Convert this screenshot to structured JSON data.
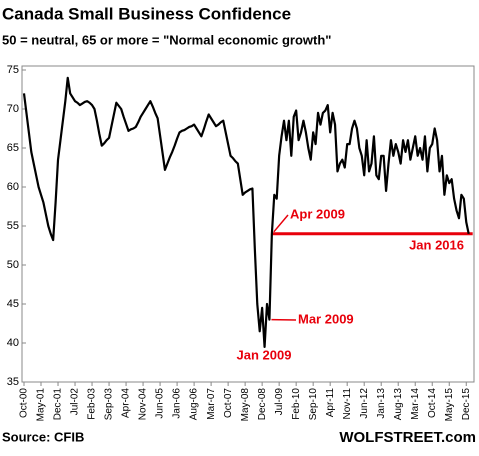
{
  "chart_data": {
    "type": "line",
    "title": "Canada Small Business Confidence",
    "subtitle": "50 = neutral, 65 or more = \"Normal economic growth\"",
    "source": "Source: CFIB",
    "credit": "WOLFSTREET.com",
    "color": "#000000",
    "categories": [
      "Oct-00",
      null,
      null,
      null,
      null,
      null,
      null,
      "May-01",
      null,
      null,
      null,
      null,
      null,
      null,
      "Dec-01",
      null,
      null,
      null,
      null,
      null,
      null,
      "Jul-02",
      null,
      null,
      null,
      null,
      null,
      null,
      "Feb-03",
      null,
      null,
      null,
      null,
      null,
      null,
      "Sep-03",
      null,
      null,
      null,
      null,
      null,
      null,
      "Apr-04",
      null,
      null,
      null,
      null,
      null,
      null,
      "Nov-04",
      null,
      null,
      null,
      null,
      null,
      null,
      "Jun-05",
      null,
      null,
      null,
      null,
      null,
      null,
      "Jan-06",
      null,
      null,
      null,
      null,
      null,
      null,
      "Aug-06",
      null,
      null,
      null,
      null,
      null,
      null,
      "Mar-07",
      null,
      null,
      null,
      null,
      null,
      null,
      "Oct-07",
      null,
      null,
      null,
      null,
      null,
      null,
      "May-08",
      null,
      null,
      null,
      null,
      null,
      null,
      "Dec-08",
      null,
      null,
      null,
      null,
      null,
      null,
      "Jul-09",
      null,
      null,
      null,
      null,
      null,
      null,
      "Feb-10",
      null,
      null,
      null,
      null,
      null,
      null,
      "Sep-10",
      null,
      null,
      null,
      null,
      null,
      null,
      "Apr-11",
      null,
      null,
      null,
      null,
      null,
      null,
      "Nov-11",
      null,
      null,
      null,
      null,
      null,
      null,
      "Jun-12",
      null,
      null,
      null,
      null,
      null,
      null,
      "Jan-13",
      null,
      null,
      null,
      null,
      null,
      null,
      "Aug-13",
      null,
      null,
      null,
      null,
      null,
      null,
      "Mar-14",
      null,
      null,
      null,
      null,
      null,
      null,
      "Oct-14",
      null,
      null,
      null,
      null,
      null,
      null,
      "May-15",
      null,
      null,
      null,
      null,
      null,
      null,
      "Dec-15",
      null
    ],
    "values": [
      72,
      69.5,
      67,
      64.5,
      63,
      61.5,
      60,
      59,
      58,
      56.5,
      55,
      54,
      53.2,
      58,
      63.5,
      66,
      68.5,
      71,
      74,
      72,
      71.5,
      71,
      70.8,
      70.5,
      70.7,
      70.9,
      71,
      70.8,
      70.5,
      70,
      68.5,
      66.8,
      65.3,
      65.6,
      66,
      66.3,
      67.8,
      69.3,
      70.8,
      70.4,
      70,
      69,
      68.1,
      67.2,
      67.4,
      67.5,
      67.7,
      68.3,
      69,
      69.5,
      70,
      70.5,
      71,
      70.3,
      69.5,
      68.8,
      66.6,
      64.4,
      62.2,
      63,
      63.8,
      64.5,
      65.3,
      66.2,
      67,
      67.2,
      67.3,
      67.5,
      67.7,
      67.8,
      68,
      67.5,
      67,
      66.5,
      67.4,
      68.4,
      69.3,
      68.8,
      68.3,
      67.8,
      68,
      68.3,
      68.5,
      67,
      65.5,
      64,
      63.7,
      63.3,
      63,
      61,
      59,
      59.3,
      59.5,
      59.7,
      59.8,
      52,
      45,
      41.5,
      44.5,
      39.5,
      45,
      43,
      54,
      59,
      58.5,
      64,
      66.5,
      68.5,
      66,
      68.5,
      64,
      69,
      69.8,
      66,
      67,
      68.5,
      67,
      65,
      63.5,
      67,
      65.5,
      69.5,
      68,
      69.5,
      69.8,
      70.5,
      67,
      69.5,
      68,
      62,
      63,
      63.5,
      62.5,
      65.5,
      65.5,
      67.5,
      68.5,
      67.5,
      65,
      64,
      61.5,
      66,
      62,
      63,
      66.5,
      61.5,
      61,
      64,
      64,
      59.5,
      63,
      66,
      64,
      65.5,
      64.5,
      63,
      66,
      64.5,
      66,
      63.5,
      65,
      66.5,
      64,
      65,
      63.5,
      66.5,
      62,
      65,
      65.5,
      67.5,
      66,
      62,
      64,
      59,
      61.5,
      60.5,
      61,
      58.5,
      57,
      56,
      59,
      58.5,
      55.5,
      54
    ],
    "ylim": [
      35,
      75
    ],
    "yticks": [
      35,
      40,
      45,
      50,
      55,
      60,
      65,
      70,
      75
    ],
    "grid": false,
    "reference_line": {
      "value": 54,
      "color": "#e8000b"
    },
    "annotations": [
      {
        "text": "Apr 2009",
        "color": "#e8000b"
      },
      {
        "text": "Mar 2009",
        "color": "#e8000b"
      },
      {
        "text": "Jan 2009",
        "color": "#e8000b"
      },
      {
        "text": "Jan 2016",
        "color": "#e8000b"
      }
    ]
  }
}
